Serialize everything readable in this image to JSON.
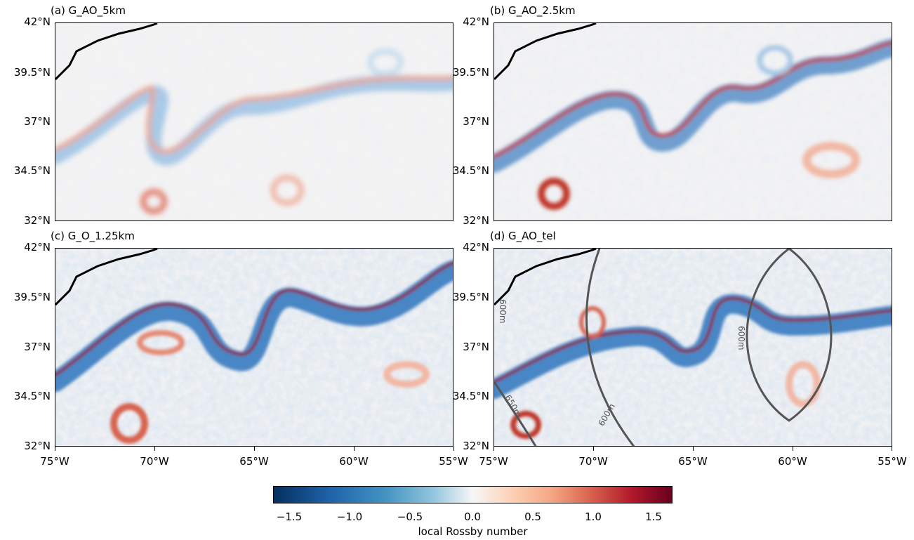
{
  "panels": [
    {
      "title": "(a) G_AO_5km"
    },
    {
      "title": "(b) G_AO_2.5km"
    },
    {
      "title": "(c) G_O_1.25km"
    },
    {
      "title": "(d) G_AO_tel"
    }
  ],
  "axes": {
    "lat_ticks": [
      "42°N",
      "39.5°N",
      "37°N",
      "34.5°N",
      "32°N"
    ],
    "lon_ticks": [
      "75°W",
      "70°W",
      "65°W",
      "60°W",
      "55°W"
    ]
  },
  "contours": {
    "labels": [
      "600m",
      "600m",
      "600m",
      "650m"
    ]
  },
  "colorbar": {
    "label": "local Rossby number",
    "ticks": [
      "−1.5",
      "−1.0",
      "−0.5",
      "0.0",
      "0.5",
      "1.0",
      "1.5"
    ],
    "colormap": "RdBu_r",
    "range": [
      -1.65,
      1.65
    ]
  },
  "colors": {
    "negative": "#1f5aa6",
    "positive": "#b2182b",
    "neutral": "#f7f7f7",
    "contour": "#555555"
  }
}
